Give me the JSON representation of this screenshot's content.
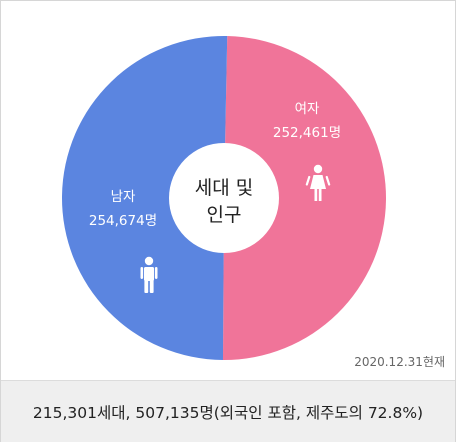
{
  "chart_data": {
    "type": "pie",
    "center_label_lines": [
      "세대 및",
      "인구"
    ],
    "slices": [
      {
        "label": "여자",
        "value": 252461,
        "value_text": "252,461명",
        "color": "#f07499",
        "icon": "female-person-icon"
      },
      {
        "label": "남자",
        "value": 254674,
        "value_text": "254,674명",
        "color": "#5b85e0",
        "icon": "male-person-icon"
      }
    ]
  },
  "date_note": "2020.12.31현재",
  "summary": "215,301세대, 507,135명(외국인 포함, 제주도의 72.8%)"
}
